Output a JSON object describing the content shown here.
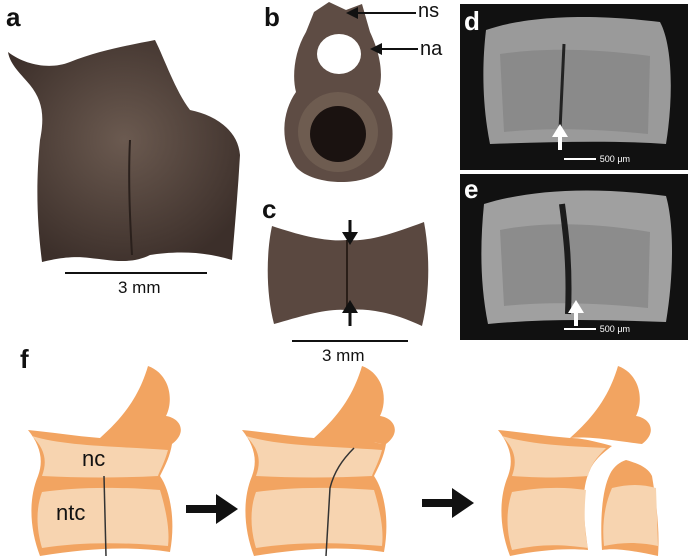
{
  "panels": {
    "a": {
      "letter": "a",
      "scale": "3 mm"
    },
    "b": {
      "letter": "b",
      "labels": {
        "ns": "ns",
        "na": "na"
      }
    },
    "c": {
      "letter": "c",
      "scale": "3 mm"
    },
    "d": {
      "letter": "d",
      "scale": "500 μm"
    },
    "e": {
      "letter": "e",
      "scale": "500 μm"
    },
    "f": {
      "letter": "f",
      "labels": {
        "nc": "nc",
        "ntc": "ntc"
      }
    }
  },
  "colors": {
    "bone_dark": "#4a3a33",
    "bone_mid": "#6b5a50",
    "diagram_orange": "#f2a461",
    "diagram_light": "#f7d4b0",
    "sem_bg": "#151515"
  },
  "icons": [
    "arrow-right-icon",
    "arrow-down-icon",
    "arrow-up-icon",
    "arrow-left-icon"
  ]
}
